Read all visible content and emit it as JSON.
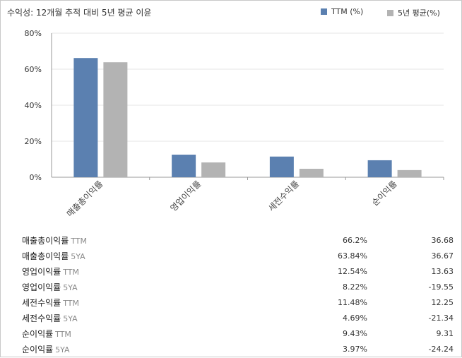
{
  "title": "수익성: 12개월 추적 대비 5년 평균 이윤",
  "colors": {
    "ttm": "#5b80b0",
    "avg5": "#b3b3b3",
    "grid": "#e6e6e6",
    "axis": "#999999"
  },
  "chart_data": {
    "type": "bar",
    "title": "수익성: 12개월 추적 대비 5년 평균 이윤",
    "categories": [
      "매출총이익률",
      "영업이익률",
      "세전수익률",
      "순이익률"
    ],
    "series": [
      {
        "name": "TTM (%)",
        "values": [
          66.2,
          12.54,
          11.48,
          9.43
        ]
      },
      {
        "name": "5년 평균(%)",
        "values": [
          63.84,
          8.22,
          4.69,
          3.97
        ]
      }
    ],
    "yticks": [
      "0%",
      "20%",
      "40%",
      "60%",
      "80%"
    ],
    "ylim": [
      0,
      80
    ],
    "grid": true,
    "legend": "top-right"
  },
  "table": [
    {
      "label": "매출총이익률",
      "suffix": "TTM",
      "v1": "66.2%",
      "v2": "36.68"
    },
    {
      "label": "매출총이익률",
      "suffix": "5YA",
      "v1": "63.84%",
      "v2": "36.67"
    },
    {
      "label": "영업이익률",
      "suffix": "TTM",
      "v1": "12.54%",
      "v2": "13.63"
    },
    {
      "label": "영업이익률",
      "suffix": "5YA",
      "v1": "8.22%",
      "v2": "-19.55"
    },
    {
      "label": "세전수익률",
      "suffix": "TTM",
      "v1": "11.48%",
      "v2": "12.25"
    },
    {
      "label": "세전수익률",
      "suffix": "5YA",
      "v1": "4.69%",
      "v2": "-21.34"
    },
    {
      "label": "순이익률",
      "suffix": "TTM",
      "v1": "9.43%",
      "v2": "9.31"
    },
    {
      "label": "순이익률",
      "suffix": "5YA",
      "v1": "3.97%",
      "v2": "-24.24"
    }
  ]
}
